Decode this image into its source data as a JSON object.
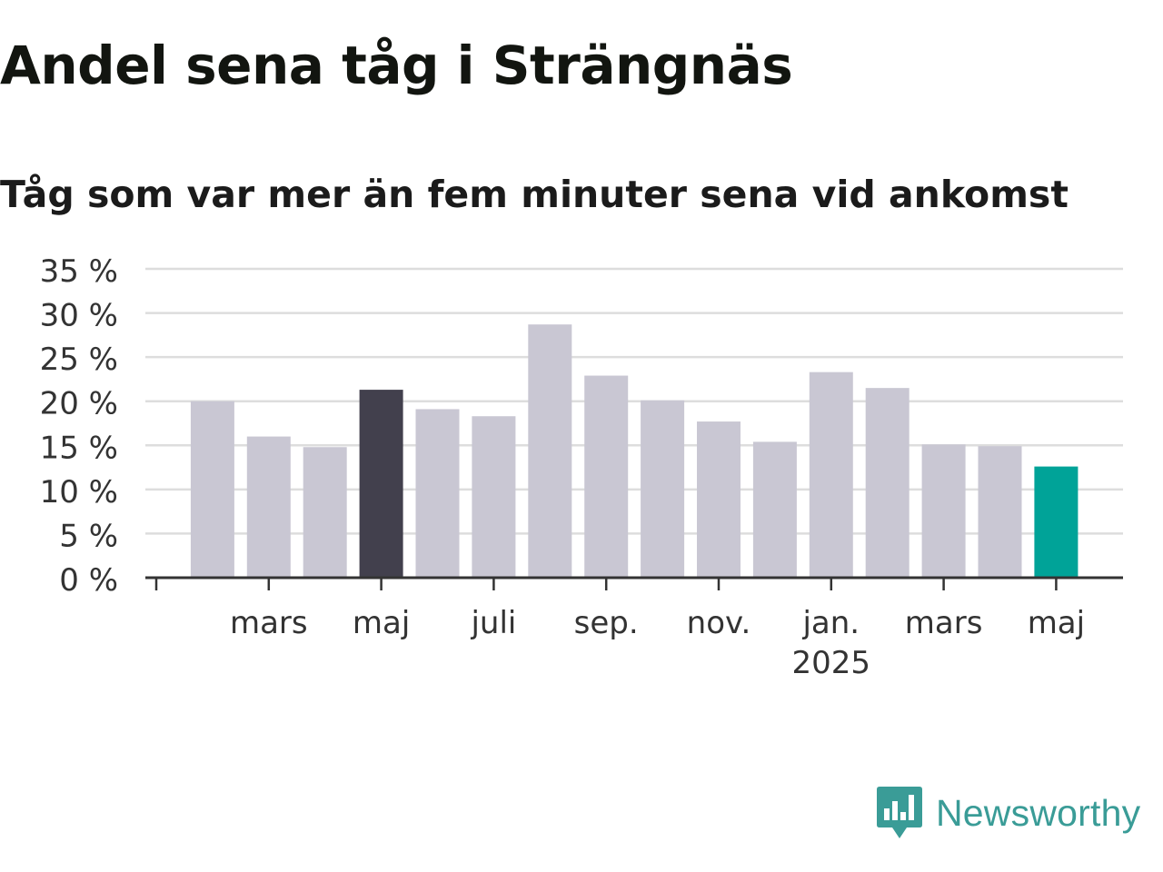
{
  "chart_data": {
    "type": "bar",
    "title": "Andel sena tåg i Strängnäs",
    "subtitle": "Tåg som var mer än fem minuter sena vid ankomst",
    "ylim": [
      0,
      35
    ],
    "y_ticks": [
      {
        "value": 0,
        "label": "0 %"
      },
      {
        "value": 5,
        "label": "5 %"
      },
      {
        "value": 10,
        "label": "10 %"
      },
      {
        "value": 15,
        "label": "15 %"
      },
      {
        "value": 20,
        "label": "20 %"
      },
      {
        "value": 25,
        "label": "25 %"
      },
      {
        "value": 30,
        "label": "30 %"
      },
      {
        "value": 35,
        "label": "35 %"
      }
    ],
    "grid": true,
    "legend": "none",
    "categories": [
      "2024-01",
      "2024-02",
      "2024-03",
      "2024-04",
      "2024-05",
      "2024-06",
      "2024-07",
      "2024-08",
      "2024-09",
      "2024-10",
      "2024-11",
      "2024-12",
      "2025-01",
      "2025-02",
      "2025-03",
      "2025-04",
      "2025-05"
    ],
    "values": [
      null,
      20,
      16,
      14.8,
      21.3,
      19.1,
      18.3,
      28.7,
      22.9,
      20.1,
      17.7,
      15.4,
      23.3,
      21.5,
      15.1,
      14.9,
      12.6
    ],
    "highlight": {
      "2024-05": "#42404d",
      "2025-05": "#00a398"
    },
    "x_ticks": [
      {
        "category": "2024-01",
        "label": ""
      },
      {
        "category": "2024-03",
        "label": "mars"
      },
      {
        "category": "2024-05",
        "label": "maj"
      },
      {
        "category": "2024-07",
        "label": "juli"
      },
      {
        "category": "2024-09",
        "label": "sep."
      },
      {
        "category": "2024-11",
        "label": "nov."
      },
      {
        "category": "2025-01",
        "label": "jan.",
        "sublabel": "2025"
      },
      {
        "category": "2025-03",
        "label": "mars"
      },
      {
        "category": "2025-05",
        "label": "maj"
      }
    ],
    "colors": {
      "bar": "#c9c7d3",
      "grid": "#dddddd",
      "axis": "#333333"
    }
  },
  "brand": {
    "name": "Newsworthy",
    "logo_icon": "newsworthy-chat-bars-icon",
    "color": "#3a9c97"
  }
}
